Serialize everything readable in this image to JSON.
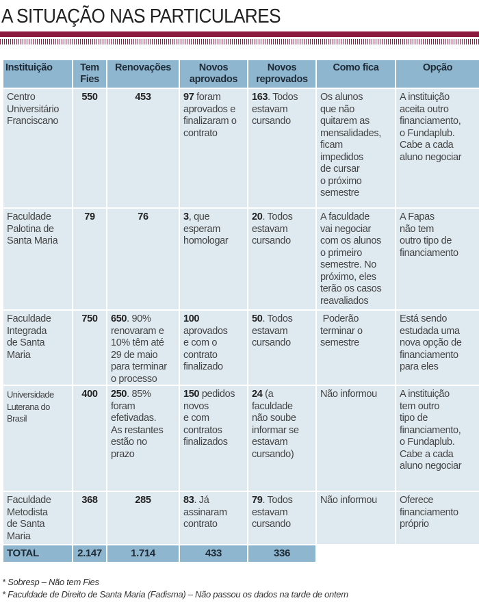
{
  "title": "A SITUAÇÃO NAS PARTICULARES",
  "colors": {
    "accent": "#8b1c3f",
    "header": "#8fb6cf",
    "cell": "#dfe9f0"
  },
  "headers": [
    "Instituição",
    "Tem\nFies",
    "Renovações",
    "Novos\naprovados",
    "Novos\nreprovados",
    "Como fica",
    "Opção"
  ],
  "rows": [
    {
      "instituicao": "Centro\nUniversitário\nFranciscano",
      "fies": "550",
      "renovacoes": {
        "bold": "453",
        "text": ""
      },
      "aprovados": {
        "bold": "97",
        "text": " foram\naprovados e\nfinalizaram o\ncontrato"
      },
      "reprovados": {
        "bold": "163",
        "text": ". Todos\nestavam\ncursando"
      },
      "como_fica": "Os alunos\nque não\nquitarem as\nmensalidades,\nficam\nimpedidos\nde cursar\no próximo\nsemestre",
      "opcao": "A instituição\naceita outro\nfinanciamento,\no Fundaplub.\nCabe a cada\naluno negociar"
    },
    {
      "instituicao": "Faculdade\nPalotina de\nSanta Maria",
      "fies": "79",
      "renovacoes": {
        "bold": "76",
        "text": ""
      },
      "aprovados": {
        "bold": "3",
        "text": ", que\nesperam\nhomologar"
      },
      "reprovados": {
        "bold": "20",
        "text": ". Todos\nestavam\ncursando"
      },
      "como_fica": "A faculdade\nvai negociar\ncom os alunos\no primeiro\nsemestre. No\npróximo, eles\nterão os casos\nreavaliados",
      "opcao": "A Fapas\nnão tem\noutro tipo de\nfinanciamento"
    },
    {
      "instituicao": "Faculdade\nIntegrada\nde Santa\nMaria",
      "fies": "750",
      "renovacoes": {
        "bold": "650",
        "text": ". 90%\nrenovaram e\n10% têm até\n29 de maio\npara terminar\no processo"
      },
      "aprovados": {
        "bold": "100",
        "text": "\naprovados\ne com o\ncontrato\nfinalizado"
      },
      "reprovados": {
        "bold": "50",
        "text": ". Todos\nestavam\ncursando"
      },
      "como_fica": " Poderão\nterminar o\nsemestre",
      "opcao": "Está sendo\nestudada uma\nnova opção de\nfinanciamento\npara eles"
    },
    {
      "instituicao": "Universidade\nLuterana do\nBrasil",
      "fies": "400",
      "renovacoes": {
        "bold": "250",
        "text": ". 85%\nforam\nefetivadas.\nAs restantes\nestão no\nprazo"
      },
      "aprovados": {
        "bold": "150",
        "text": " pedidos\nnovos\ne com\ncontratos\nfinalizados"
      },
      "reprovados": {
        "bold": "24",
        "text": " (a\nfaculdade\nnão soube\ninformar se\nestavam\ncursando)"
      },
      "como_fica": "Não informou",
      "opcao": "A instituição\ntem outro\ntipo de\nfinanciamento,\no Fundaplub.\nCabe a cada\naluno negociar"
    },
    {
      "instituicao": "Faculdade\nMetodista\nde Santa\nMaria",
      "fies": "368",
      "renovacoes": {
        "bold": "285",
        "text": ""
      },
      "aprovados": {
        "bold": "83",
        "text": ". Já\nassinaram\ncontrato"
      },
      "reprovados": {
        "bold": "79",
        "text": ". Todos\nestavam\ncursando"
      },
      "como_fica": "Não informou",
      "opcao": "Oferece\nfinanciamento\npróprio"
    }
  ],
  "total": {
    "label": "TOTAL",
    "fies": "2.147",
    "renovacoes": "1.714",
    "aprovados": "433",
    "reprovados": "336"
  },
  "notes": [
    "* Sobresp – Não tem Fies",
    "* Faculdade de Direito de Santa Maria (Fadisma) – Não passou os dados na tarde de ontem"
  ]
}
